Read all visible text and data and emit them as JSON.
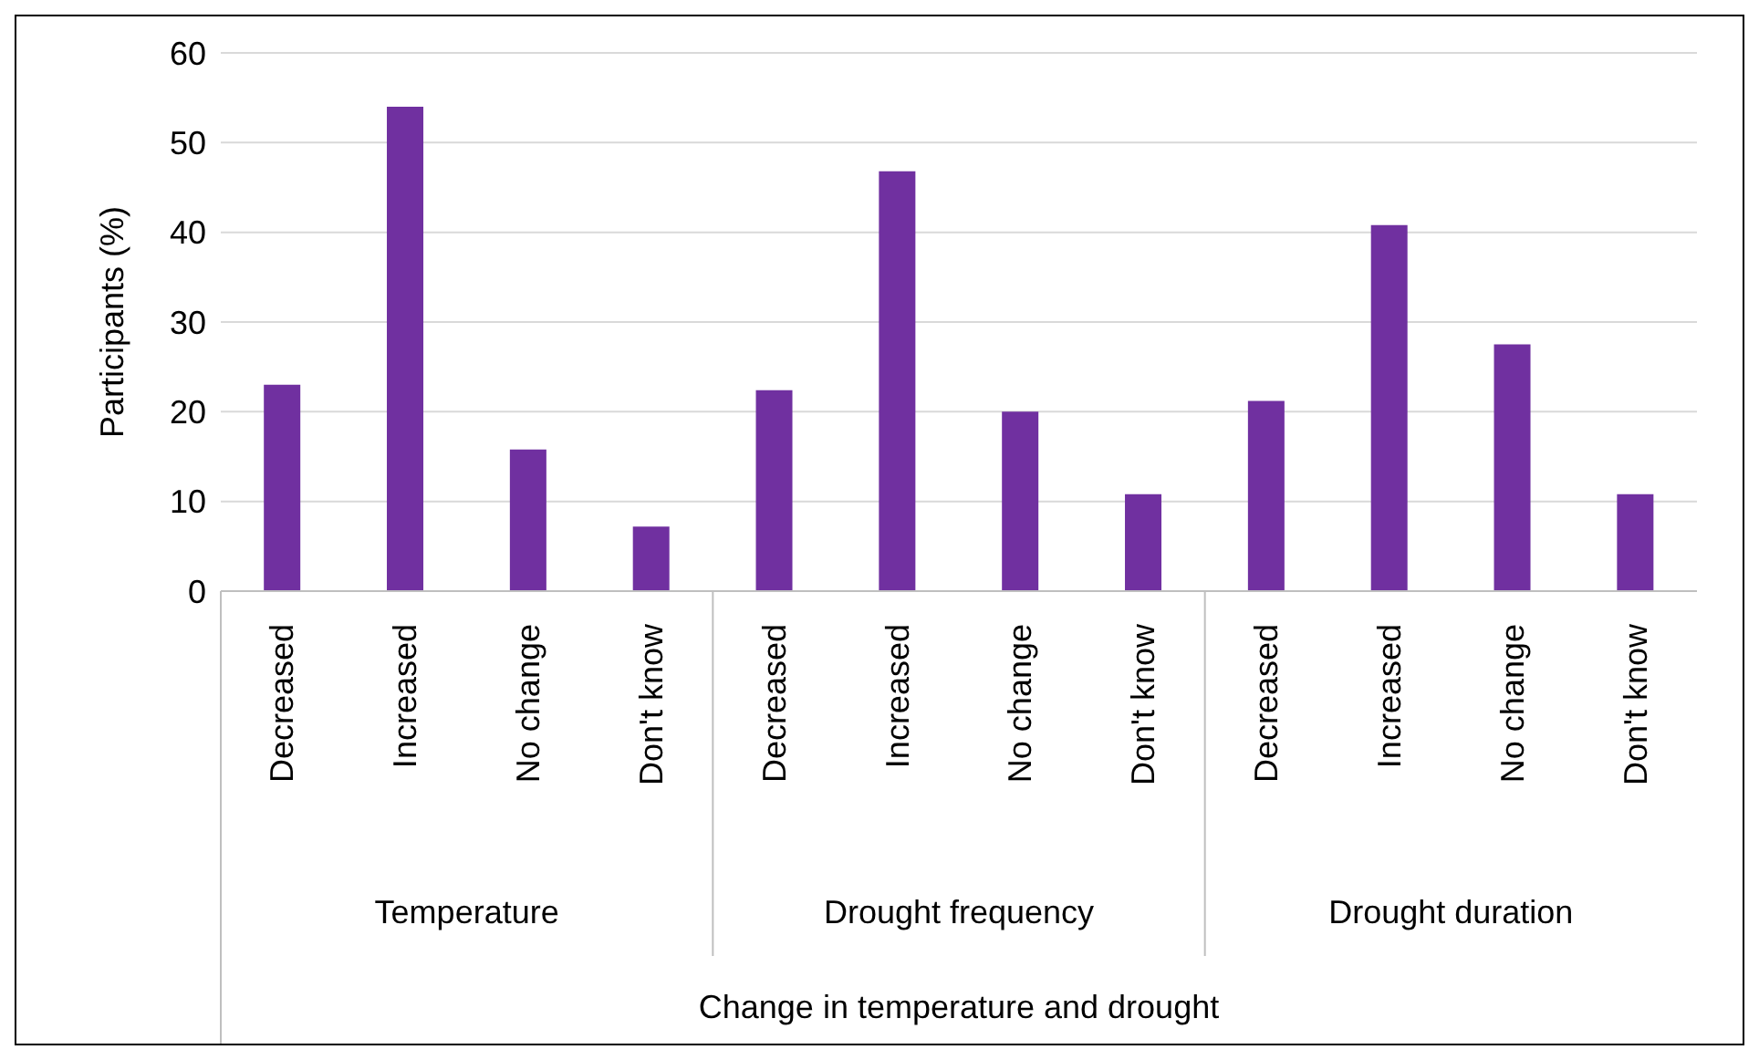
{
  "chart_data": {
    "type": "bar",
    "ylabel": "Participants (%)",
    "categories": [
      "Decreased",
      "Increased",
      "No change",
      "Don't know",
      "Decreased",
      "Increased",
      "No change",
      "Don't know",
      "Decreased",
      "Increased",
      "No change",
      "Don't know"
    ],
    "values": [
      23,
      54,
      15.8,
      7.2,
      22.4,
      46.8,
      20,
      10.8,
      21.2,
      40.8,
      27.5,
      10.8
    ],
    "color": "#7030a0",
    "ylim": [
      0,
      60
    ],
    "yticks": [
      0,
      10,
      20,
      30,
      40,
      50,
      60
    ],
    "grid": "y",
    "legend": false,
    "annotations": [
      "Temperature",
      "Drought frequency",
      "Drought duration",
      "Change in temperature and drought"
    ]
  }
}
